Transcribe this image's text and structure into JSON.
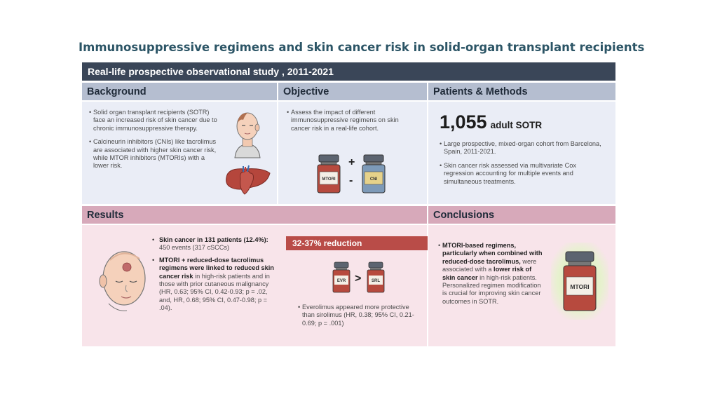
{
  "title": "Immunosuppressive regimens and skin cancer risk in solid-organ transplant recipients",
  "banner": "Real-life prospective observational study , 2011-2021",
  "background": {
    "heading": "Background",
    "bullet1": "Solid organ transplant recipients (SOTR) face an increased risk of skin cancer due to chronic immunosuppressive therapy.",
    "bullet2": "Calcineurin inhibitors (CNIs) like tacrolimus are associated with higher skin cancer risk, while MTOR inhibitors (MTORIs) with a lower risk."
  },
  "objective": {
    "heading": "Objective",
    "bullet1": "Assess the impact of different immunosuppressive regimens on skin cancer risk in a real-life cohort.",
    "vial1_label": "MTORI",
    "vial2_label": "CNI",
    "op_plus": "+",
    "op_minus": "-"
  },
  "patients": {
    "heading": "Patients & Methods",
    "count": "1,055",
    "count_label": "adult SOTR",
    "bullet1": "Large prospective, mixed-organ cohort from Barcelona, Spain, 2011-2021.",
    "bullet2": "Skin cancer risk assessed via multivariate Cox regression accounting for multiple events and simultaneous treatments."
  },
  "results": {
    "heading": "Results",
    "b1_bold": "Skin cancer in 131 patients (12.4%):",
    "b1_rest": " 450 events (317 cSCCs)",
    "b2_bold": "MTORI + reduced-dose tacrolimus regimens were linked to reduced skin cancer risk",
    "b2_rest": " in high-risk patients and in those with prior cutaneous malignancy (HR, 0.63; 95% CI, 0.42-0.93; p = .02, and, HR, 0.68; 95% CI, 0.47-0.98; p = .04).",
    "reduction": "32-37% reduction",
    "evr_label": "EVR",
    "srl_label": "SRL",
    "op_greater": ">",
    "note": "Everolimus appeared more protective than sirolimus (HR, 0.38; 95% CI, 0.21-0.69; p = .001)"
  },
  "conclusions": {
    "heading": "Conclusions",
    "b_bold1": "MTORI-based regimens, particularly when combined with reduced-dose tacrolimus,",
    "b_mid": " were associated with a ",
    "b_bold2": "lower risk of skin cancer",
    "b_rest": " in high-risk patients. Personalized regimen modification is crucial for improving skin cancer outcomes in SOTR.",
    "vial_label": "MTORI"
  },
  "colors": {
    "title": "#2c5566",
    "banner": "#3a4658",
    "blue_header": "#b5bed0",
    "pink_header": "#d7a9ba",
    "blue_panel": "#eaedf6",
    "pink_panel": "#f8e4ea",
    "reduction": "#b94c48"
  }
}
